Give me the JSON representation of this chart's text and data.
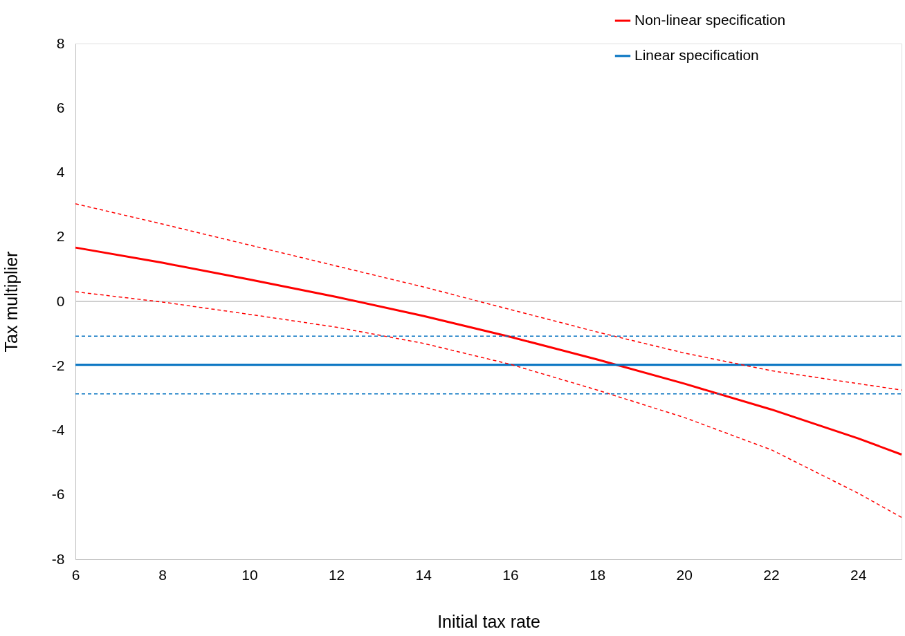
{
  "chart_data": {
    "type": "line",
    "xlabel": "Initial tax rate",
    "ylabel": "Tax multiplier",
    "xlim": [
      6,
      25
    ],
    "xticks": [
      6,
      8,
      10,
      12,
      14,
      16,
      18,
      20,
      22,
      24
    ],
    "ylim": [
      -8,
      8
    ],
    "yticks": [
      -8,
      -6,
      -4,
      -2,
      0,
      2,
      4,
      6,
      8
    ],
    "grid": false,
    "legend": "top right",
    "marker": "none",
    "ref_lines": [
      {
        "axis": "y",
        "value": 0,
        "color": "#bfbfbf",
        "line_style": "solid"
      }
    ],
    "series": [
      {
        "name": "Non-linear specification",
        "color": "#ff0000",
        "line_style": "solid",
        "x": [
          6,
          8,
          10,
          12,
          14,
          16,
          18,
          20,
          22,
          24,
          25
        ],
        "values": [
          1.67,
          1.2,
          0.68,
          0.14,
          -0.45,
          -1.1,
          -1.8,
          -2.55,
          -3.35,
          -4.25,
          -4.75
        ]
      },
      {
        "name": "Linear specification",
        "color": "#0070c0",
        "line_style": "solid",
        "x": [
          6,
          25
        ],
        "values": [
          -1.97,
          -1.97
        ]
      },
      {
        "color": "#ff0000",
        "line_style": "dashed",
        "x": [
          6,
          8,
          10,
          12,
          14,
          16,
          18,
          20,
          22,
          24,
          25
        ],
        "values": [
          3.03,
          2.4,
          1.75,
          1.1,
          0.45,
          -0.25,
          -0.95,
          -1.6,
          -2.15,
          -2.55,
          -2.75
        ]
      },
      {
        "color": "#ff0000",
        "line_style": "dashed",
        "x": [
          6,
          8,
          10,
          12,
          14,
          16,
          18,
          20,
          22,
          24,
          25
        ],
        "values": [
          0.3,
          -0.02,
          -0.4,
          -0.8,
          -1.3,
          -1.95,
          -2.75,
          -3.6,
          -4.6,
          -5.95,
          -6.7
        ]
      },
      {
        "color": "#0070c0",
        "line_style": "dashed",
        "x": [
          6,
          25
        ],
        "values": [
          -1.08,
          -1.08
        ]
      },
      {
        "color": "#0070c0",
        "line_style": "dashed",
        "x": [
          6,
          25
        ],
        "values": [
          -2.87,
          -2.87
        ]
      }
    ]
  }
}
